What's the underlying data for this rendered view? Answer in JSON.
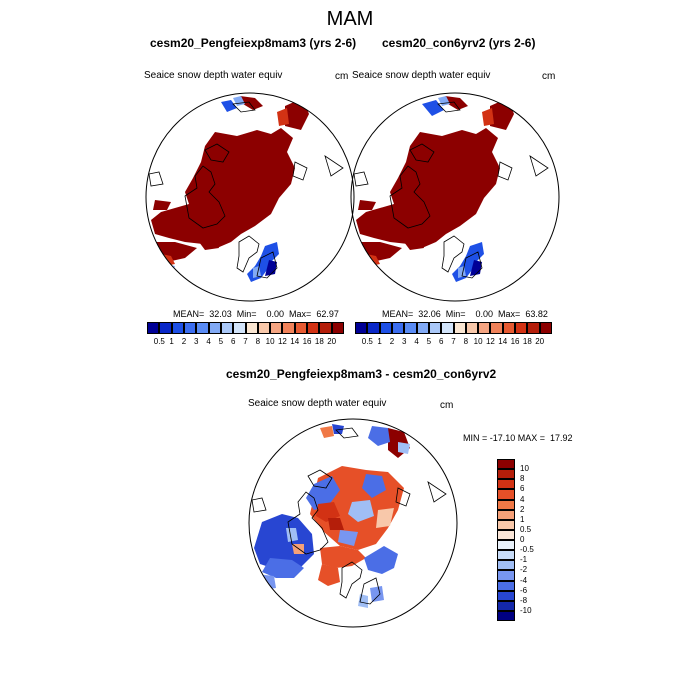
{
  "title": "MAM",
  "panels": [
    {
      "id": "left",
      "title": "cesm20_Pengfeiexp8mam3 (yrs 2-6)",
      "variable": "Seaice snow depth water equiv",
      "units": "cm",
      "stats": "MEAN=  32.03  Min=    0.00  Max=  62.97"
    },
    {
      "id": "right",
      "title": "cesm20_con6yrv2 (yrs 2-6)",
      "variable": "Seaice snow depth water equiv",
      "units": "cm",
      "stats": "MEAN=  32.06  Min=    0.00  Max=  63.82"
    }
  ],
  "abs_colorbar": {
    "labels": [
      "0.5",
      "1",
      "2",
      "3",
      "4",
      "5",
      "6",
      "7",
      "8",
      "10",
      "12",
      "14",
      "16",
      "18",
      "20"
    ],
    "colors": [
      "#000096",
      "#0a28c8",
      "#1e50e6",
      "#3c6ef0",
      "#5a8cf5",
      "#82aaf5",
      "#aac8f8",
      "#d2e4fa",
      "#fae6d2",
      "#f8c8aa",
      "#f5a582",
      "#f0825a",
      "#e65a32",
      "#d23214",
      "#b41e0a",
      "#8c0000"
    ]
  },
  "diff_panel": {
    "title": "cesm20_Pengfeiexp8mam3 - cesm20_con6yrv2",
    "variable": "Seaice snow depth water equiv",
    "units": "cm",
    "stats": "MIN = -17.10 MAX =  17.92"
  },
  "diff_colorbar": {
    "labels": [
      "10",
      "8",
      "6",
      "4",
      "2",
      "1",
      "0.5",
      "0",
      "-0.5",
      "-1",
      "-2",
      "-4",
      "-6",
      "-8",
      "-10"
    ],
    "colors": [
      "#8c0000",
      "#b41e0a",
      "#d23214",
      "#e65028",
      "#f07846",
      "#f5a078",
      "#f8c8aa",
      "#fae6d8",
      "#eaf2fb",
      "#c8dcf8",
      "#a0bef5",
      "#7896f0",
      "#4b6ee6",
      "#2846d2",
      "#1428aa",
      "#000082"
    ]
  },
  "colors": {
    "dark_red": "#8c0000",
    "mid_red": "#e65a32",
    "blue": "#1e50e6",
    "light_blue": "#82aaf5",
    "coast": "#000000"
  }
}
